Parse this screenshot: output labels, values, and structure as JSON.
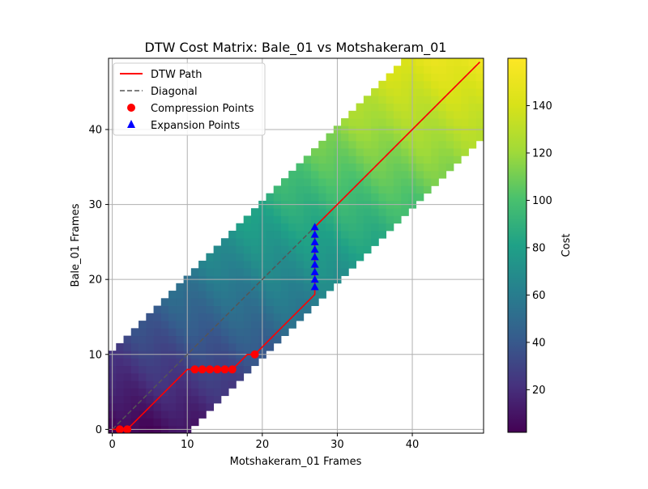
{
  "chart_data": {
    "type": "heatmap",
    "title": "DTW Cost Matrix: Bale_01 vs Motshakeram_01",
    "xlabel": "Motshakeram_01 Frames",
    "ylabel": "Bale_01 Frames",
    "xlim": [
      -0.5,
      49.5
    ],
    "ylim": [
      -0.5,
      49.5
    ],
    "x_ticks": [
      0,
      10,
      20,
      30,
      40
    ],
    "y_ticks": [
      0,
      10,
      20,
      30,
      40
    ],
    "grid": true,
    "matrix_size": [
      50,
      50
    ],
    "band_half_width": 10,
    "colormap": "viridis",
    "colorbar": {
      "label": "Cost",
      "range": [
        2,
        160
      ],
      "ticks": [
        20,
        40,
        60,
        80,
        100,
        120,
        140
      ]
    },
    "legend": {
      "position": "top-left",
      "entries": [
        "DTW Path",
        "Diagonal",
        "Compression Points",
        "Expansion Points"
      ]
    },
    "series": [
      {
        "name": "DTW Path",
        "kind": "line",
        "color": "#ff0000",
        "points": [
          [
            0,
            0
          ],
          [
            1,
            0
          ],
          [
            2,
            0
          ],
          [
            3,
            1
          ],
          [
            4,
            2
          ],
          [
            5,
            3
          ],
          [
            6,
            4
          ],
          [
            7,
            5
          ],
          [
            8,
            6
          ],
          [
            9,
            7
          ],
          [
            10,
            8
          ],
          [
            11,
            8
          ],
          [
            12,
            8
          ],
          [
            13,
            8
          ],
          [
            14,
            8
          ],
          [
            15,
            8
          ],
          [
            16,
            8
          ],
          [
            17,
            9
          ],
          [
            18,
            10
          ],
          [
            19,
            10
          ],
          [
            20,
            11
          ],
          [
            21,
            12
          ],
          [
            22,
            13
          ],
          [
            23,
            14
          ],
          [
            24,
            15
          ],
          [
            25,
            16
          ],
          [
            26,
            17
          ],
          [
            27,
            18
          ],
          [
            27,
            19
          ],
          [
            27,
            20
          ],
          [
            27,
            21
          ],
          [
            27,
            22
          ],
          [
            27,
            23
          ],
          [
            27,
            24
          ],
          [
            27,
            25
          ],
          [
            27,
            26
          ],
          [
            27,
            27
          ],
          [
            28,
            28
          ],
          [
            29,
            29
          ],
          [
            30,
            30
          ],
          [
            31,
            31
          ],
          [
            32,
            32
          ],
          [
            33,
            33
          ],
          [
            34,
            34
          ],
          [
            35,
            35
          ],
          [
            36,
            36
          ],
          [
            37,
            37
          ],
          [
            38,
            38
          ],
          [
            39,
            39
          ],
          [
            40,
            40
          ],
          [
            41,
            41
          ],
          [
            42,
            42
          ],
          [
            43,
            43
          ],
          [
            44,
            44
          ],
          [
            45,
            45
          ],
          [
            46,
            46
          ],
          [
            47,
            47
          ],
          [
            48,
            48
          ],
          [
            49,
            49
          ]
        ]
      },
      {
        "name": "Diagonal",
        "kind": "line",
        "color": "#555555",
        "points": [
          [
            0,
            0
          ],
          [
            49,
            49
          ]
        ]
      },
      {
        "name": "Compression Points",
        "kind": "scatter",
        "color": "#ff0000",
        "points": [
          [
            1,
            0
          ],
          [
            2,
            0
          ],
          [
            11,
            8
          ],
          [
            12,
            8
          ],
          [
            13,
            8
          ],
          [
            14,
            8
          ],
          [
            15,
            8
          ],
          [
            16,
            8
          ],
          [
            19,
            10
          ]
        ]
      },
      {
        "name": "Expansion Points",
        "kind": "scatter",
        "color": "#0000ff",
        "points": [
          [
            27,
            19
          ],
          [
            27,
            20
          ],
          [
            27,
            21
          ],
          [
            27,
            22
          ],
          [
            27,
            23
          ],
          [
            27,
            24
          ],
          [
            27,
            25
          ],
          [
            27,
            26
          ],
          [
            27,
            27
          ]
        ]
      }
    ]
  }
}
